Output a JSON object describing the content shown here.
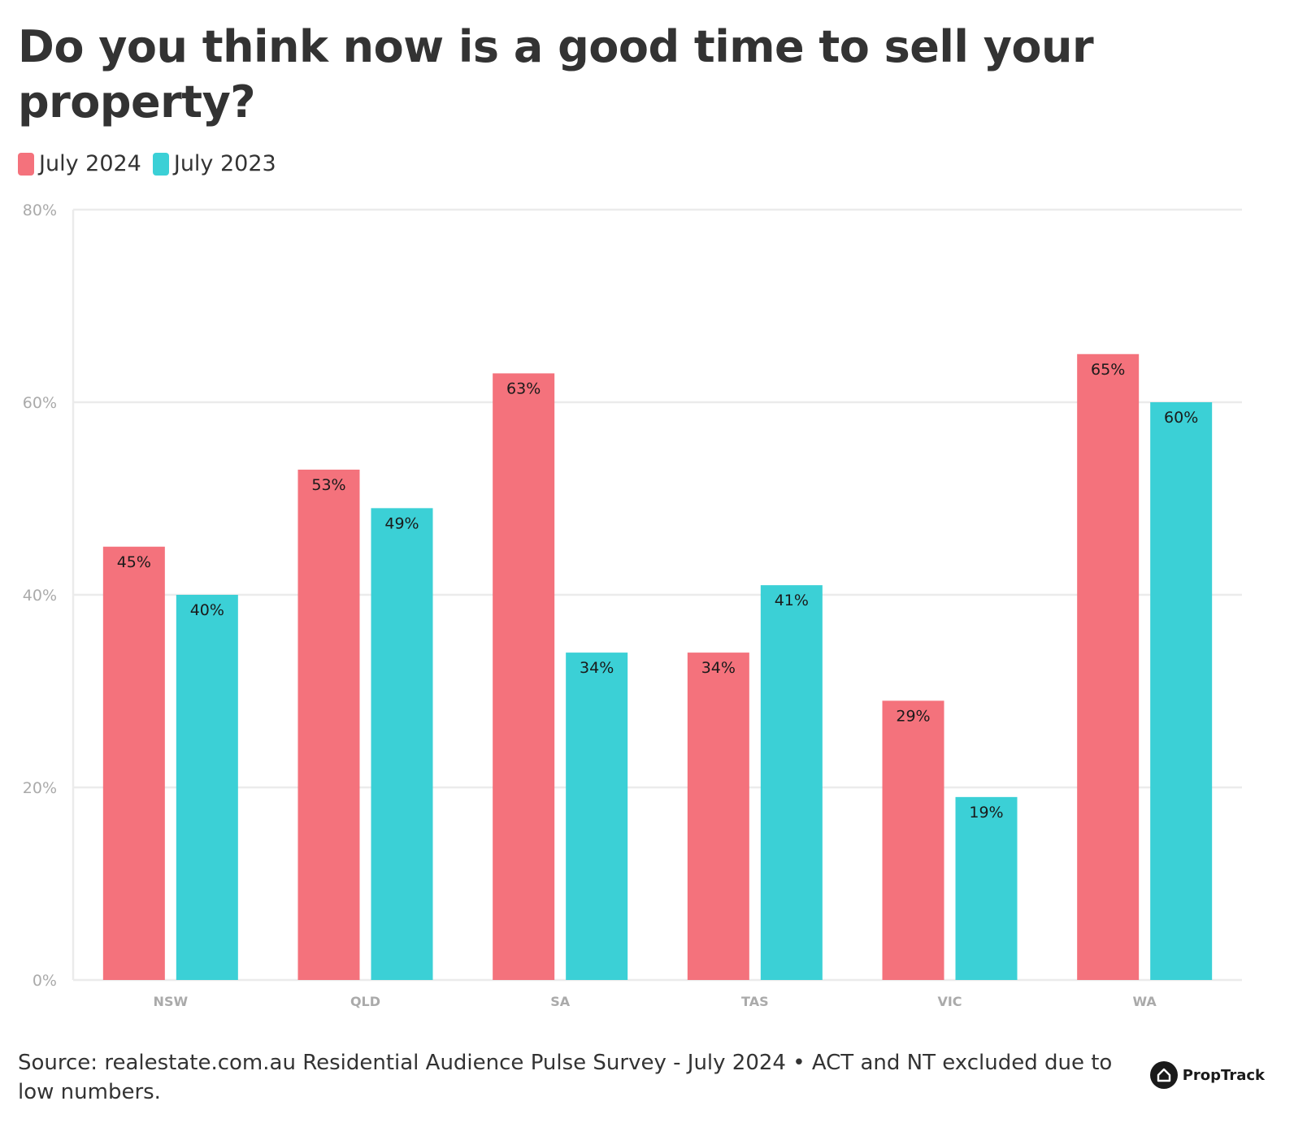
{
  "title": "Do you think now is a good time to sell your property?",
  "legend": [
    {
      "label": "July 2024",
      "color": "#f4727c"
    },
    {
      "label": "July 2023",
      "color": "#3bd0d6"
    }
  ],
  "footer": "Source: realestate.com.au Residential Audience Pulse Survey - July 2024 • ACT and NT excluded due to low numbers.",
  "logo": {
    "text": "PropTrack",
    "icon": "house-icon"
  },
  "chart_data": {
    "type": "bar",
    "title": "Do you think now is a good time to sell your property?",
    "categories": [
      "NSW",
      "QLD",
      "SA",
      "TAS",
      "VIC",
      "WA"
    ],
    "series": [
      {
        "name": "July 2024",
        "color": "#f4727c",
        "values": [
          45,
          53,
          63,
          34,
          29,
          65
        ]
      },
      {
        "name": "July 2023",
        "color": "#3bd0d6",
        "values": [
          40,
          49,
          34,
          41,
          19,
          60
        ]
      }
    ],
    "ylim": [
      0,
      80
    ],
    "yticks": [
      0,
      20,
      40,
      60,
      80
    ],
    "ytick_labels": [
      "0%",
      "20%",
      "40%",
      "60%",
      "80%"
    ],
    "value_suffix": "%",
    "grid": true,
    "legend_position": "top-left"
  }
}
